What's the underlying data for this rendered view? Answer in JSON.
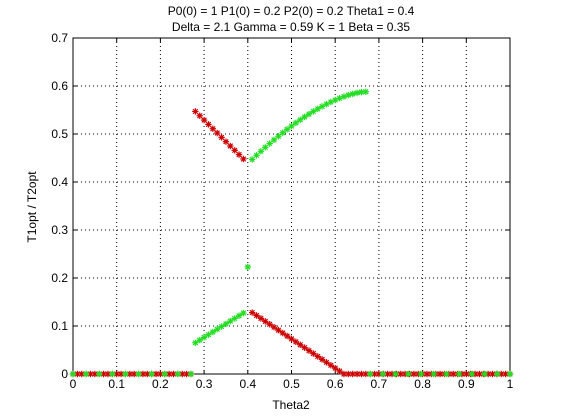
{
  "chart_data": {
    "type": "scatter",
    "title_lines": [
      "P0(0) = 1 P1(0) = 0.2 P2(0) = 0.2 Theta1 = 0.4",
      "Delta = 2.1 Gamma = 0.59 K = 1 Beta = 0.35"
    ],
    "xlabel": "Theta2",
    "ylabel": "T1opt / T2opt",
    "xlim": [
      0,
      1
    ],
    "ylim": [
      0,
      0.7
    ],
    "xticks": [
      0,
      0.1,
      0.2,
      0.3,
      0.4,
      0.5,
      0.6,
      0.7,
      0.8,
      0.9,
      1
    ],
    "xtick_labels": [
      "0",
      "0.1",
      "0.2",
      "0.3",
      "0.4",
      "0.5",
      "0.6",
      "0.7",
      "0.8",
      "0.9",
      "1"
    ],
    "yticks": [
      0,
      0.1,
      0.2,
      0.3,
      0.4,
      0.5,
      0.6,
      0.7
    ],
    "ytick_labels": [
      "0",
      "0.1",
      "0.2",
      "0.3",
      "0.4",
      "0.5",
      "0.6",
      "0.7"
    ],
    "grid": true,
    "series": [
      {
        "color": "#cc0000",
        "marker": "asterisk",
        "segments": [
          {
            "x0": 0.0,
            "y0": 0.0,
            "x1": 0.27,
            "y1": 0.0,
            "step": 0.01
          },
          {
            "x0": 0.28,
            "y0": 0.547,
            "x1": 0.39,
            "y1": 0.448,
            "step": 0.01
          },
          {
            "x0": 0.41,
            "y0": 0.128,
            "x1": 0.62,
            "y1": 0.0,
            "step": 0.01
          },
          {
            "x0": 0.63,
            "y0": 0.0,
            "x1": 1.0,
            "y1": 0.0,
            "step": 0.01
          }
        ]
      },
      {
        "color": "#22dd22",
        "marker": "asterisk",
        "segments": [
          {
            "x0": 0.0,
            "y0": 0.0,
            "x1": 0.27,
            "y1": 0.0,
            "step": 0.03
          },
          {
            "x0": 0.28,
            "y0": 0.065,
            "x1": 0.39,
            "y1": 0.127,
            "step": 0.01
          },
          {
            "x0": 0.4,
            "y0": 0.223,
            "x1": 0.4,
            "y1": 0.223,
            "step": 0.01
          },
          {
            "x0": 0.41,
            "y0": 0.447,
            "x1": 0.67,
            "y1": 0.588,
            "step": 0.01,
            "curve": true
          },
          {
            "x0": 0.68,
            "y0": 0.0,
            "x1": 1.0,
            "y1": 0.0,
            "step": 0.03
          }
        ]
      }
    ]
  }
}
